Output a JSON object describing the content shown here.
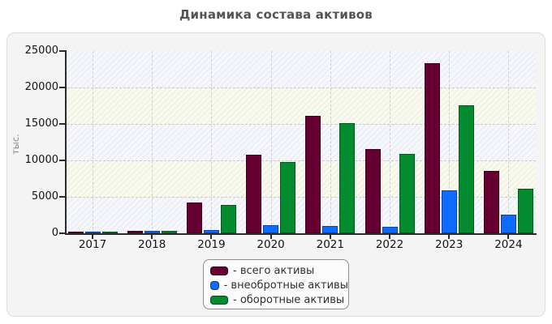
{
  "chart_data": {
    "type": "bar",
    "title": "Динамика состава активов",
    "ylabel": "тыс.",
    "xlabel": "",
    "categories": [
      "2017",
      "2018",
      "2019",
      "2020",
      "2021",
      "2022",
      "2023",
      "2024"
    ],
    "series": [
      {
        "name": "всего активы",
        "color": "#660033",
        "border": "#40001f",
        "values": [
          250,
          350,
          4200,
          10800,
          16100,
          11600,
          23300,
          8600
        ]
      },
      {
        "name": "внеобротные активы",
        "color": "#0f6bff",
        "border": "#0047b3",
        "values": [
          200,
          300,
          400,
          1100,
          1000,
          900,
          5900,
          2500
        ]
      },
      {
        "name": "оборотные активы",
        "color": "#048a2f",
        "border": "#015c20",
        "values": [
          220,
          320,
          3900,
          9800,
          15100,
          10900,
          17500,
          6100
        ]
      }
    ],
    "ylim": [
      0,
      25000
    ],
    "yticks": [
      0,
      5000,
      10000,
      15000,
      20000,
      25000
    ],
    "grid": true,
    "legend_position": "bottom-center",
    "legend_items": [
      {
        "label": "- всего активы",
        "color": "#660033"
      },
      {
        "label": "- внеобротные активы",
        "color": "#0f6bff"
      },
      {
        "label": "- оборотные активы",
        "color": "#048a2f"
      }
    ]
  },
  "colors": {
    "page_bg": "#ffffff",
    "panel_bg": "#f4f4f4",
    "panel_border": "#dcdcdc",
    "band_bluish": "#f6f7fc",
    "band_ivory": "#fafaec",
    "gridline": "#c9c9c9",
    "axis": "#2b2b2b",
    "title_text": "#545454",
    "tick_text": "#141414",
    "ylabel_text": "#8d8d8d",
    "legend_bg": "#fcfcfc",
    "legend_border": "#8f8f8f",
    "legend_text": "#2f2f2f"
  }
}
